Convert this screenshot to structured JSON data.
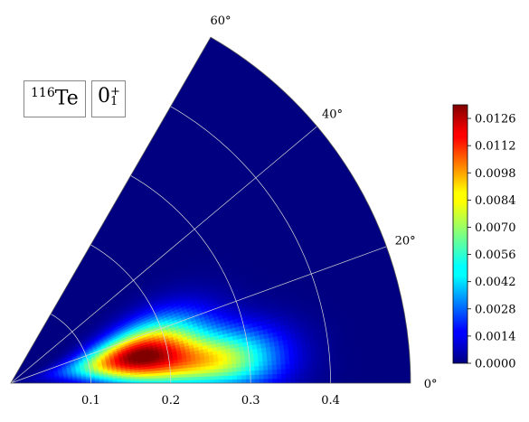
{
  "chart_data": {
    "type": "heatmap",
    "projection": "polar-sector",
    "title": "",
    "annotations": {
      "nucleus_mass": "116",
      "nucleus_symbol": "Te",
      "state_base": "0",
      "state_sub": "1",
      "state_sup": "+"
    },
    "radial_axis": {
      "range": [
        0,
        0.5
      ],
      "tick_values": [
        0.1,
        0.2,
        0.3,
        0.4
      ],
      "tick_labels": [
        "0.1",
        "0.2",
        "0.3",
        "0.4"
      ]
    },
    "angular_axis": {
      "range_deg": [
        0,
        60
      ],
      "tick_values": [
        0,
        20,
        40,
        60
      ],
      "tick_labels": [
        "0°",
        "20°",
        "40°",
        "60°"
      ]
    },
    "grid": true,
    "colormap": "jet",
    "colorbar": {
      "range": [
        0,
        0.0133
      ],
      "tick_values": [
        0.0,
        0.0014,
        0.0028,
        0.0042,
        0.0056,
        0.007,
        0.0084,
        0.0098,
        0.0112,
        0.0126
      ],
      "tick_labels": [
        "0.0000",
        "0.0014",
        "0.0028",
        "0.0042",
        "0.0056",
        "0.0070",
        "0.0084",
        "0.0098",
        "0.0112",
        "0.0126"
      ],
      "placement": "right"
    },
    "density_features": [
      {
        "beta": 0.165,
        "gamma_deg": 12,
        "peak_value": 0.0133,
        "spread_beta": 0.055,
        "spread_gamma_deg": 8
      },
      {
        "beta": 0.27,
        "gamma_deg": 6,
        "peak_value": 0.0065,
        "spread_beta": 0.05,
        "spread_gamma_deg": 5
      }
    ]
  }
}
